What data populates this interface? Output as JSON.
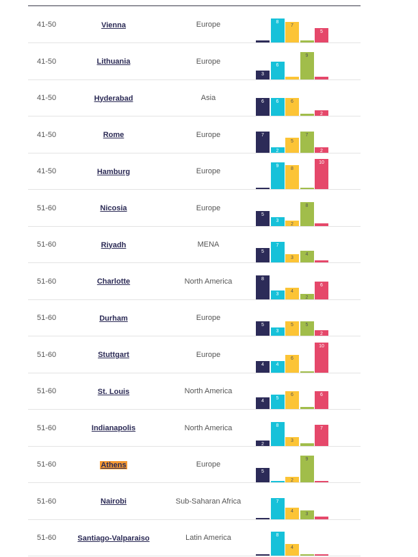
{
  "colors": [
    "#2c2b58",
    "#16c1d9",
    "#fcc436",
    "#a1bd4a",
    "#e5486a"
  ],
  "highlight_color": "#f59a33",
  "rows": [
    {
      "rank": "41-50",
      "city": "Vienna",
      "region": "Europe",
      "values": [
        1,
        8,
        7,
        1,
        5
      ],
      "labels": [
        "",
        "8",
        "7",
        "",
        "5"
      ]
    },
    {
      "rank": "41-50",
      "city": "Lithuania",
      "region": "Europe",
      "values": [
        3,
        6,
        1,
        9,
        1
      ],
      "labels": [
        "3",
        "6",
        "",
        "9",
        ""
      ]
    },
    {
      "rank": "41-50",
      "city": "Hyderabad",
      "region": "Asia",
      "values": [
        6,
        6,
        6,
        1,
        2
      ],
      "labels": [
        "6",
        "6",
        "6",
        "",
        "2"
      ]
    },
    {
      "rank": "41-50",
      "city": "Rome",
      "region": "Europe",
      "values": [
        7,
        2,
        5,
        7,
        2
      ],
      "labels": [
        "7",
        "2",
        "5",
        "7",
        "2"
      ]
    },
    {
      "rank": "41-50",
      "city": "Hamburg",
      "region": "Europe",
      "values": [
        0.5,
        9,
        8,
        0.5,
        10
      ],
      "labels": [
        "",
        "9",
        "8",
        "",
        "10"
      ]
    },
    {
      "rank": "51-60",
      "city": "Nicosia",
      "region": "Europe",
      "values": [
        5,
        3,
        2,
        8,
        1
      ],
      "labels": [
        "5",
        "3",
        "2",
        "8",
        ""
      ]
    },
    {
      "rank": "51-60",
      "city": "Riyadh",
      "region": "MENA",
      "values": [
        5,
        7,
        3,
        4,
        1
      ],
      "labels": [
        "5",
        "7",
        "3",
        "4",
        ""
      ]
    },
    {
      "rank": "51-60",
      "city": "Charlotte",
      "region": "North America",
      "values": [
        8,
        3,
        4,
        2,
        6
      ],
      "labels": [
        "8",
        "3",
        "4",
        "2",
        "6"
      ]
    },
    {
      "rank": "51-60",
      "city": "Durham",
      "region": "Europe",
      "values": [
        5,
        3,
        5,
        5,
        2
      ],
      "labels": [
        "5",
        "3",
        "5",
        "5",
        "2"
      ]
    },
    {
      "rank": "51-60",
      "city": "Stuttgart",
      "region": "Europe",
      "values": [
        4,
        4,
        6,
        0.5,
        10
      ],
      "labels": [
        "4",
        "4",
        "6",
        "",
        "10"
      ]
    },
    {
      "rank": "51-60",
      "city": "St. Louis",
      "region": "North America",
      "values": [
        4,
        5,
        6,
        1,
        6
      ],
      "labels": [
        "4",
        "5",
        "6",
        "",
        "6"
      ]
    },
    {
      "rank": "51-60",
      "city": "Indianapolis",
      "region": "North America",
      "values": [
        2,
        8,
        3,
        1,
        7
      ],
      "labels": [
        "2",
        "8",
        "3",
        "",
        "7"
      ]
    },
    {
      "rank": "51-60",
      "city": "Athens",
      "region": "Europe",
      "values": [
        5,
        0.5,
        2,
        9,
        0.5
      ],
      "labels": [
        "5",
        "",
        "2",
        "9",
        ""
      ],
      "highlight": true
    },
    {
      "rank": "51-60",
      "city": "Nairobi",
      "region": "Sub-Saharan Africa",
      "values": [
        0.5,
        7,
        4,
        3,
        1
      ],
      "labels": [
        "",
        "7",
        "4",
        "3",
        ""
      ]
    },
    {
      "rank": "51-60",
      "city": "Santiago-Valparaiso",
      "region": "Latin America",
      "values": [
        0.5,
        8,
        4,
        0.5,
        0.5
      ],
      "labels": [
        "",
        "8",
        "4",
        "",
        ""
      ]
    }
  ]
}
